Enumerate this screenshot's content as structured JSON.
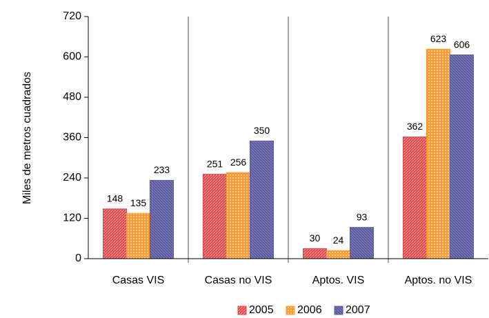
{
  "chart_data": {
    "type": "bar",
    "y_label": "Miles de metros cuadrados",
    "categories": [
      "Casas VIS",
      "Casas no VIS",
      "Aptos. VIS",
      "Aptos. no VIS"
    ],
    "series": [
      {
        "name": "2005",
        "color": "#e04848",
        "values": [
          148,
          251,
          30,
          362
        ]
      },
      {
        "name": "2006",
        "color": "#ff9a30",
        "values": [
          135,
          256,
          24,
          623
        ]
      },
      {
        "name": "2007",
        "color": "#5a5aa0",
        "values": [
          233,
          350,
          93,
          606
        ]
      }
    ],
    "ylim": [
      0,
      720
    ],
    "yticks": [
      0,
      120,
      240,
      360,
      480,
      600,
      720
    ],
    "legend": "bottom"
  }
}
